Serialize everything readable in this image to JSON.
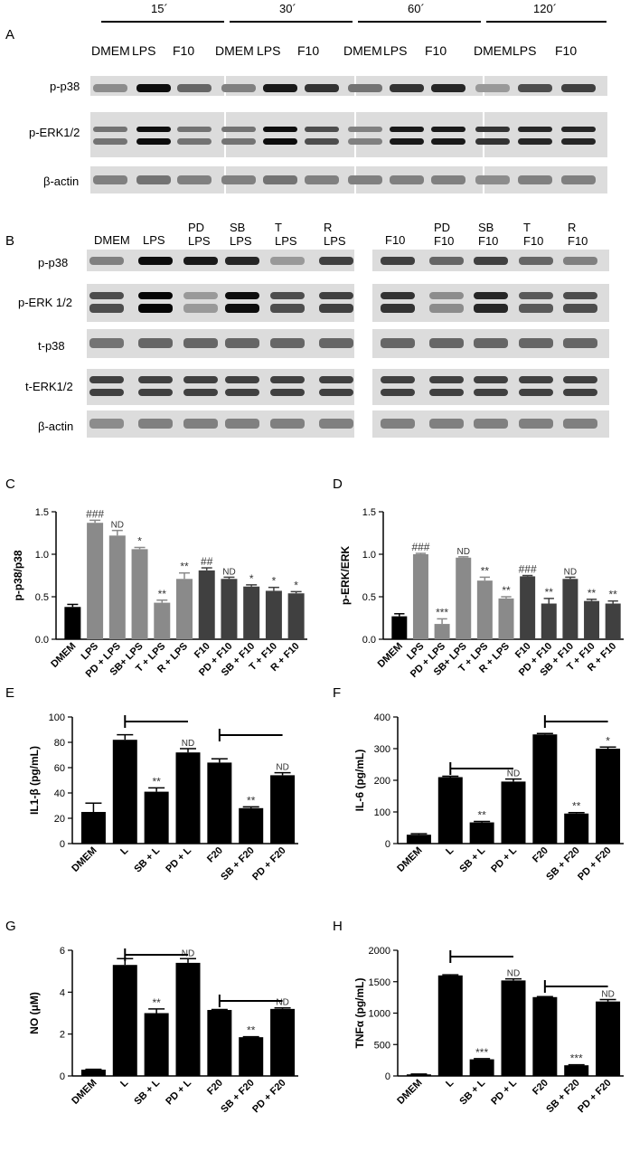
{
  "panels": {
    "A": "A",
    "B": "B",
    "C": "C",
    "D": "D",
    "E": "E",
    "F": "F",
    "G": "G",
    "H": "H"
  },
  "panelA": {
    "timepoints": [
      "15´",
      "30´",
      "60´",
      "120´"
    ],
    "lanes": [
      "DMEM",
      "LPS",
      "F10",
      "DMEM",
      "LPS",
      "F10",
      "DMEM",
      "LPS",
      "F10",
      "DMEM",
      "LPS",
      "F10"
    ],
    "rows": [
      "p-p38",
      "p-ERK1/2",
      "β-actin"
    ]
  },
  "panelB": {
    "lanes": [
      [
        "DMEM",
        ""
      ],
      [
        "LPS",
        ""
      ],
      [
        "PD",
        "LPS"
      ],
      [
        "SB",
        "LPS"
      ],
      [
        "T",
        "LPS"
      ],
      [
        "R",
        "LPS"
      ],
      [
        "F10",
        ""
      ],
      [
        "PD",
        "F10"
      ],
      [
        "SB",
        "F10"
      ],
      [
        "T",
        "F10"
      ],
      [
        "R",
        "F10"
      ]
    ],
    "rows": [
      "p-p38",
      "p-ERK 1/2",
      "t-p38",
      "t-ERK1/2",
      "β-actin"
    ]
  },
  "chart_data": [
    {
      "panel": "C",
      "type": "bar",
      "ylabel": "p-p38/p38",
      "ylim": [
        0,
        1.5
      ],
      "yticks": [
        "0.0",
        "0.5",
        "1.0",
        "1.5"
      ],
      "categories": [
        "DMEM",
        "LPS",
        "PD + LPS",
        "SB+ LPS",
        "T + LPS",
        "R + LPS",
        "F10",
        "PD + F10",
        "SB + F10",
        "T + F10",
        "R + F10"
      ],
      "values": [
        0.38,
        1.37,
        1.22,
        1.06,
        0.43,
        0.71,
        0.81,
        0.71,
        0.62,
        0.57,
        0.54
      ],
      "errors": [
        0.03,
        0.03,
        0.06,
        0.02,
        0.03,
        0.07,
        0.03,
        0.02,
        0.02,
        0.04,
        0.02
      ],
      "annotations": [
        "",
        "###",
        "ND",
        "*",
        "**",
        "**",
        "##",
        "ND",
        "*",
        "*",
        "*"
      ],
      "colors": [
        "#000000",
        "#8a8a8a",
        "#8a8a8a",
        "#8a8a8a",
        "#8a8a8a",
        "#8a8a8a",
        "#404040",
        "#404040",
        "#404040",
        "#404040",
        "#404040"
      ]
    },
    {
      "panel": "D",
      "type": "bar",
      "ylabel": "p-ERK/ERK",
      "ylim": [
        0,
        1.5
      ],
      "yticks": [
        "0.0",
        "0.5",
        "1.0",
        "1.5"
      ],
      "categories": [
        "DMEM",
        "LPS",
        "PD + LPS",
        "SB+ LPS",
        "T + LPS",
        "R + LPS",
        "F10",
        "PD + F10",
        "SB + F10",
        "T + F10",
        "R + F10"
      ],
      "values": [
        0.27,
        1.0,
        0.18,
        0.96,
        0.69,
        0.48,
        0.74,
        0.42,
        0.71,
        0.45,
        0.42
      ],
      "errors": [
        0.03,
        0.01,
        0.06,
        0.01,
        0.04,
        0.02,
        0.01,
        0.06,
        0.02,
        0.02,
        0.03
      ],
      "annotations": [
        "",
        "###",
        "***",
        "ND",
        "**",
        "**",
        "###",
        "**",
        "ND",
        "**",
        "**"
      ],
      "colors": [
        "#000000",
        "#8a8a8a",
        "#8a8a8a",
        "#8a8a8a",
        "#8a8a8a",
        "#8a8a8a",
        "#404040",
        "#404040",
        "#404040",
        "#404040",
        "#404040"
      ]
    },
    {
      "panel": "E",
      "type": "bar",
      "ylabel": "IL1-β (pg/mL)",
      "ylim": [
        0,
        100
      ],
      "yticks": [
        "0",
        "20",
        "40",
        "60",
        "80",
        "100"
      ],
      "categories": [
        "DMEM",
        "L",
        "SB + L",
        "PD + L",
        "F20",
        "SB + F20",
        "PD + F20"
      ],
      "values": [
        25,
        82,
        41,
        72,
        64,
        28,
        54
      ],
      "errors": [
        7,
        4,
        3,
        3,
        3,
        1,
        2
      ],
      "annotations": [
        "",
        "",
        "**",
        "ND",
        "",
        "**",
        "ND"
      ],
      "brackets": [
        [
          1,
          3
        ],
        [
          4,
          6
        ]
      ]
    },
    {
      "panel": "F",
      "type": "bar",
      "ylabel": "IL-6 (pg/mL)",
      "ylim": [
        0,
        400
      ],
      "yticks": [
        "0",
        "100",
        "200",
        "300",
        "400"
      ],
      "categories": [
        "DMEM",
        "L",
        "SB + L",
        "PD + L",
        "F20",
        "SB + F20",
        "PD + F20"
      ],
      "values": [
        28,
        210,
        67,
        196,
        345,
        95,
        300
      ],
      "errors": [
        3,
        3,
        3,
        8,
        3,
        3,
        5
      ],
      "annotations": [
        "",
        "",
        "**",
        "ND",
        "",
        "**",
        "*"
      ],
      "brackets": [
        [
          1,
          3
        ],
        [
          4,
          6
        ]
      ]
    },
    {
      "panel": "G",
      "type": "bar",
      "ylabel": "NO (μM)",
      "ylim": [
        0,
        6
      ],
      "yticks": [
        "0",
        "2",
        "4",
        "6"
      ],
      "categories": [
        "DMEM",
        "L",
        "SB + L",
        "PD + L",
        "F20",
        "SB + F20",
        "PD + F20"
      ],
      "values": [
        0.3,
        5.3,
        3.0,
        5.4,
        3.15,
        1.85,
        3.2
      ],
      "errors": [
        0.02,
        0.3,
        0.2,
        0.2,
        0.02,
        0.02,
        0.05
      ],
      "annotations": [
        "",
        "",
        "**",
        "ND",
        "",
        "**",
        "ND"
      ],
      "brackets": [
        [
          1,
          3
        ],
        [
          4,
          6
        ]
      ]
    },
    {
      "panel": "H",
      "type": "bar",
      "ylabel": "TNFα (pg/mL)",
      "ylim": [
        0,
        2000
      ],
      "yticks": [
        "0",
        "500",
        "1000",
        "1500",
        "2000"
      ],
      "categories": [
        "DMEM",
        "L",
        "SB + L",
        "PD + L",
        "F20",
        "SB + F20",
        "PD + F20"
      ],
      "values": [
        25,
        1600,
        265,
        1520,
        1255,
        170,
        1185
      ],
      "errors": [
        5,
        10,
        10,
        25,
        8,
        8,
        30
      ],
      "annotations": [
        "",
        "",
        "***",
        "ND",
        "",
        "***",
        "ND"
      ],
      "brackets": [
        [
          1,
          3
        ],
        [
          4,
          6
        ]
      ]
    }
  ]
}
